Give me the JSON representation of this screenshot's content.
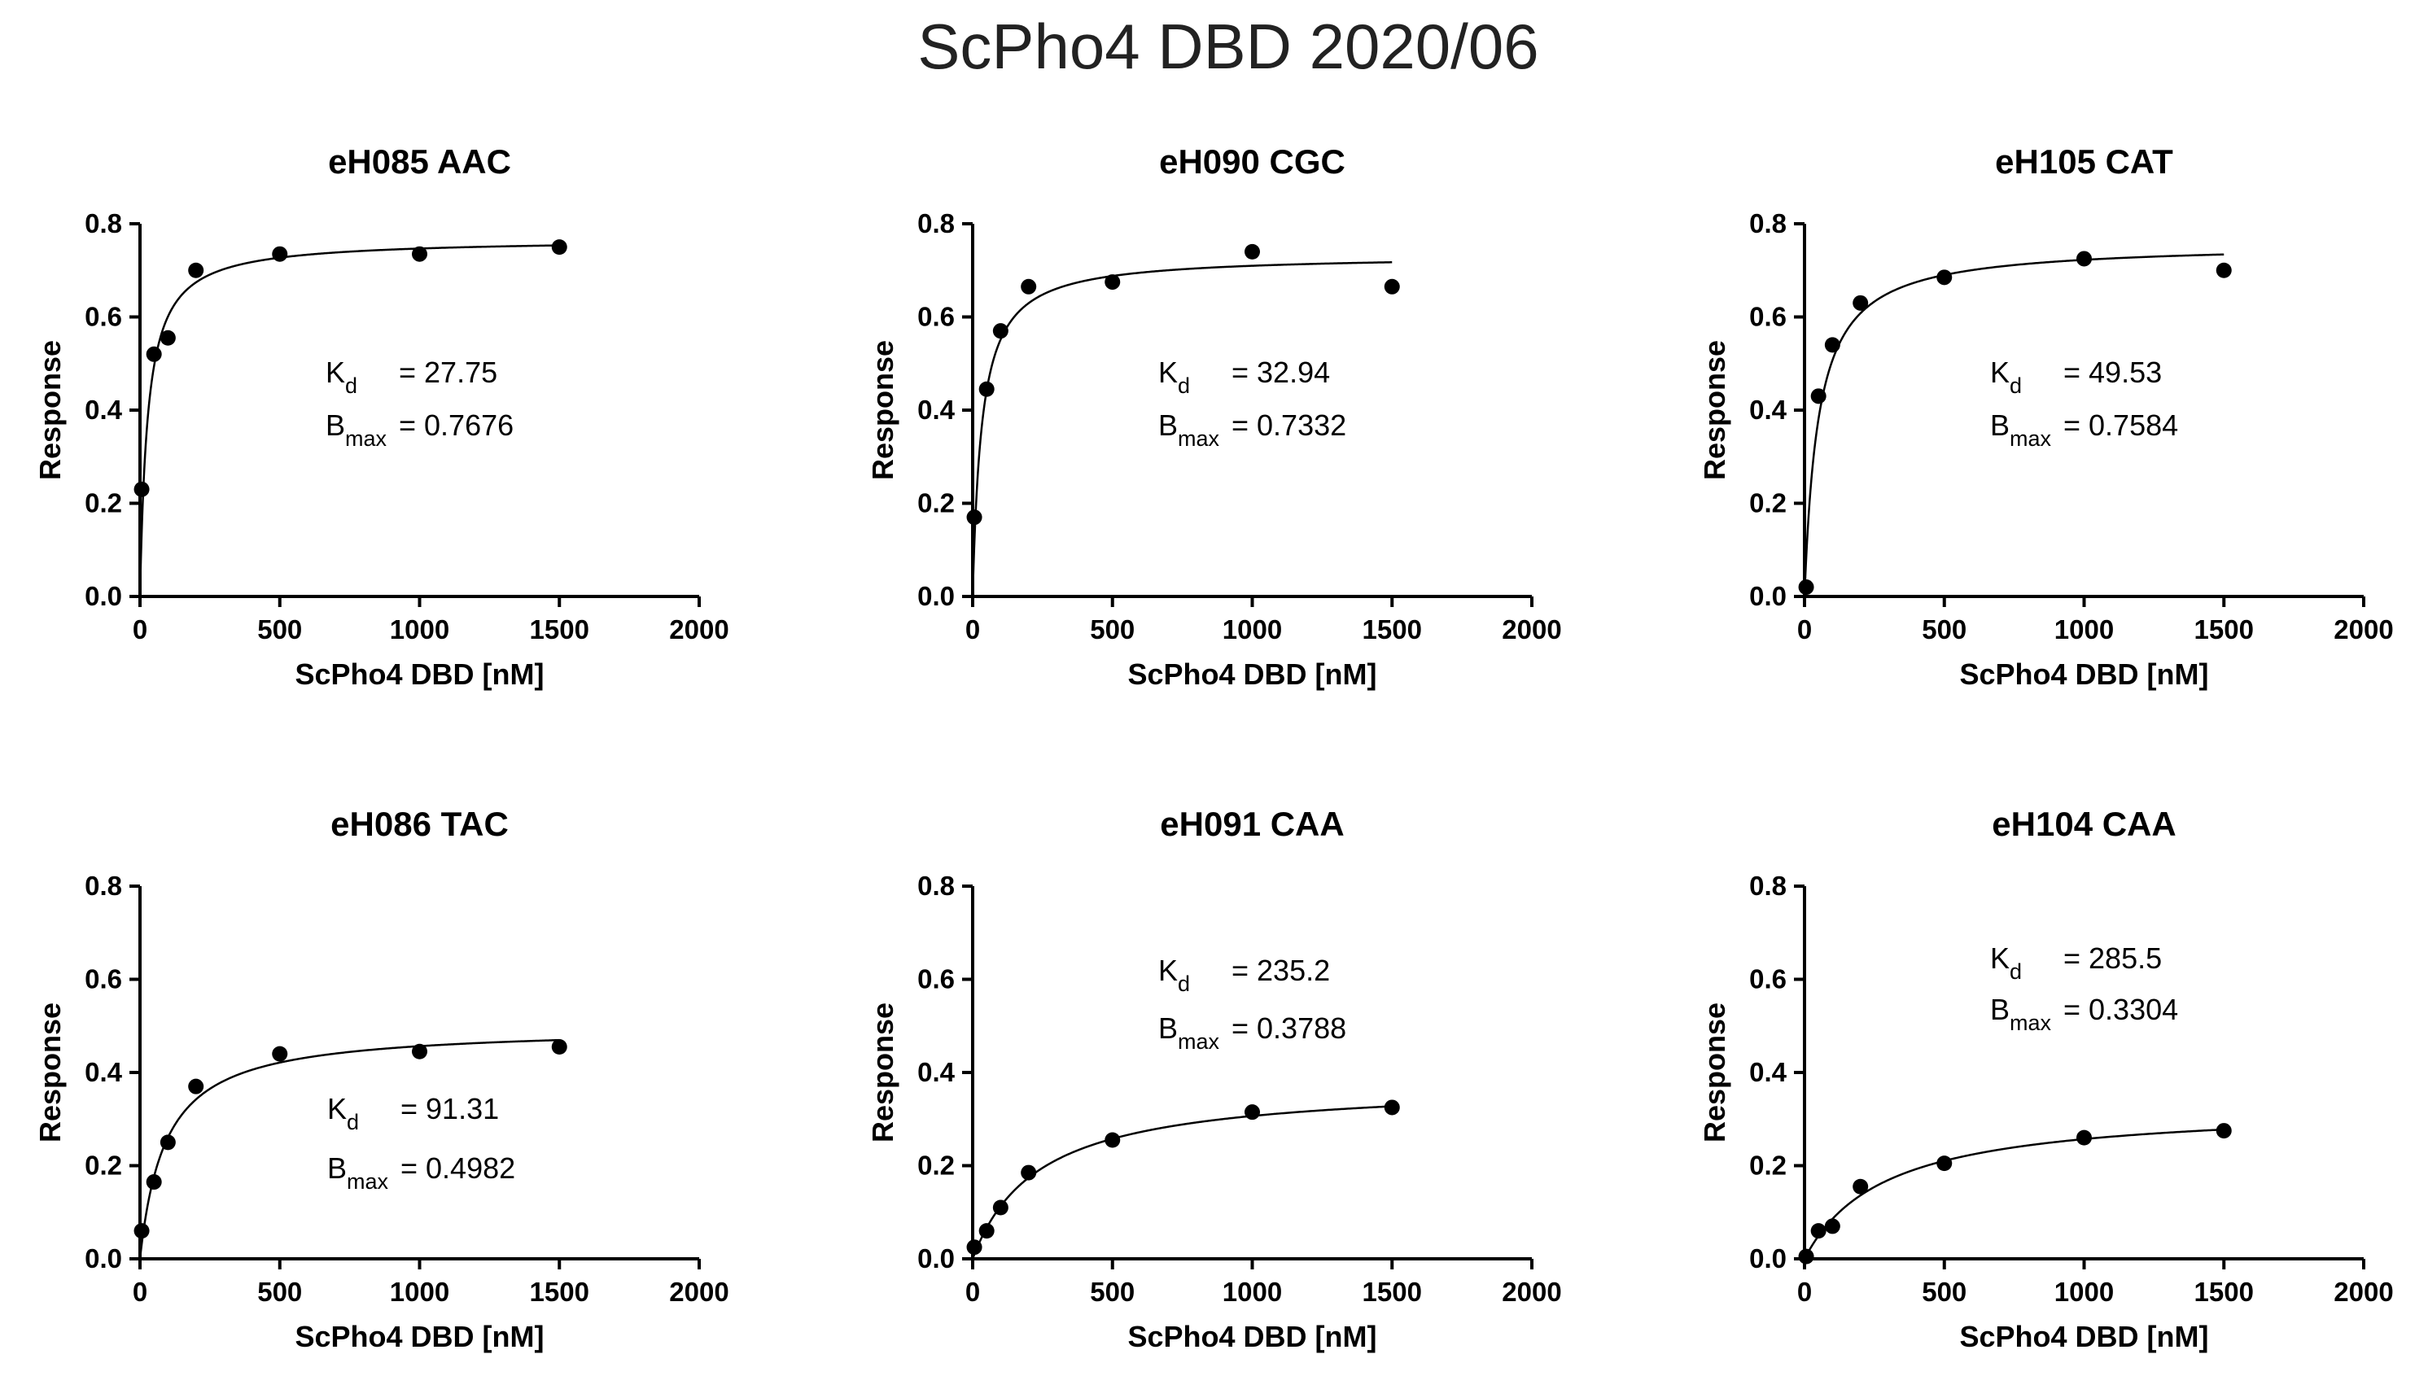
{
  "figure_title": "ScPho4 DBD 2020/06",
  "chart_data": [
    {
      "type": "scatter",
      "title": "eH085 AAC",
      "xlabel": "ScPho4 DBD [nM]",
      "ylabel": "Response",
      "xlim": [
        0,
        2000
      ],
      "ylim": [
        0,
        0.8
      ],
      "xticks": [
        "0",
        "500",
        "1000",
        "1500",
        "2000"
      ],
      "yticks": [
        "0.0",
        "0.2",
        "0.4",
        "0.6",
        "0.8"
      ],
      "x": [
        6,
        50,
        100,
        200,
        500,
        1000,
        1500
      ],
      "y": [
        0.23,
        0.52,
        0.555,
        0.7,
        0.735,
        0.735,
        0.75
      ],
      "fit": {
        "model": "one-site binding",
        "kd": 27.75,
        "bmax": 0.7676,
        "x_end": 1500
      },
      "annotations": {
        "kd_label": "K",
        "kd_sub": "d",
        "kd_value": "= 27.75",
        "bmax_label": "B",
        "bmax_sub": "max",
        "bmax_value": "= 0.7676"
      }
    },
    {
      "type": "scatter",
      "title": "eH090 CGC",
      "xlabel": "ScPho4 DBD [nM]",
      "ylabel": "Response",
      "xlim": [
        0,
        2000
      ],
      "ylim": [
        0,
        0.8
      ],
      "xticks": [
        "0",
        "500",
        "1000",
        "1500",
        "2000"
      ],
      "yticks": [
        "0.0",
        "0.2",
        "0.4",
        "0.6",
        "0.8"
      ],
      "x": [
        6,
        50,
        100,
        200,
        500,
        1000,
        1500
      ],
      "y": [
        0.17,
        0.445,
        0.57,
        0.665,
        0.675,
        0.74,
        0.665
      ],
      "fit": {
        "model": "one-site binding",
        "kd": 32.94,
        "bmax": 0.7332,
        "x_end": 1500
      },
      "annotations": {
        "kd_label": "K",
        "kd_sub": "d",
        "kd_value": "= 32.94",
        "bmax_label": "B",
        "bmax_sub": "max",
        "bmax_value": "= 0.7332"
      }
    },
    {
      "type": "scatter",
      "title": "eH105 CAT",
      "xlabel": "ScPho4 DBD [nM]",
      "ylabel": "Response",
      "xlim": [
        0,
        2000
      ],
      "ylim": [
        0,
        0.8
      ],
      "xticks": [
        "0",
        "500",
        "1000",
        "1500",
        "2000"
      ],
      "yticks": [
        "0.0",
        "0.2",
        "0.4",
        "0.6",
        "0.8"
      ],
      "x": [
        6,
        50,
        100,
        200,
        500,
        1000,
        1500
      ],
      "y": [
        0.02,
        0.43,
        0.54,
        0.63,
        0.685,
        0.725,
        0.7
      ],
      "fit": {
        "model": "one-site binding",
        "kd": 49.53,
        "bmax": 0.7584,
        "x_end": 1500
      },
      "annotations": {
        "kd_label": "K",
        "kd_sub": "d",
        "kd_value": "= 49.53",
        "bmax_label": "B",
        "bmax_sub": "max",
        "bmax_value": "= 0.7584"
      }
    },
    {
      "type": "scatter",
      "title": "eH086 TAC",
      "xlabel": "ScPho4 DBD [nM]",
      "ylabel": "Response",
      "xlim": [
        0,
        2000
      ],
      "ylim": [
        0,
        0.8
      ],
      "xticks": [
        "0",
        "500",
        "1000",
        "1500",
        "2000"
      ],
      "yticks": [
        "0.0",
        "0.2",
        "0.4",
        "0.6",
        "0.8"
      ],
      "x": [
        6,
        50,
        100,
        200,
        500,
        1000,
        1500
      ],
      "y": [
        0.06,
        0.165,
        0.25,
        0.37,
        0.44,
        0.445,
        0.455
      ],
      "fit": {
        "model": "one-site binding",
        "kd": 91.31,
        "bmax": 0.4982,
        "x_end": 1500
      },
      "annotations": {
        "kd_label": "K",
        "kd_sub": "d",
        "kd_value": "= 91.31",
        "bmax_label": "B",
        "bmax_sub": "max",
        "bmax_value": "= 0.4982"
      }
    },
    {
      "type": "scatter",
      "title": "eH091 CAA",
      "xlabel": "ScPho4 DBD [nM]",
      "ylabel": "Response",
      "xlim": [
        0,
        2000
      ],
      "ylim": [
        0,
        0.8
      ],
      "xticks": [
        "0",
        "500",
        "1000",
        "1500",
        "2000"
      ],
      "yticks": [
        "0.0",
        "0.2",
        "0.4",
        "0.6",
        "0.8"
      ],
      "x": [
        6,
        50,
        100,
        200,
        500,
        1000,
        1500
      ],
      "y": [
        0.025,
        0.06,
        0.11,
        0.185,
        0.255,
        0.315,
        0.325
      ],
      "fit": {
        "model": "one-site binding",
        "kd": 235.2,
        "bmax": 0.3788,
        "x_end": 1500
      },
      "annotations": {
        "kd_label": "K",
        "kd_sub": "d",
        "kd_value": "= 235.2",
        "bmax_label": "B",
        "bmax_sub": "max",
        "bmax_value": "= 0.3788"
      }
    },
    {
      "type": "scatter",
      "title": "eH104 CAA",
      "xlabel": "ScPho4 DBD [nM]",
      "ylabel": "Response",
      "xlim": [
        0,
        2000
      ],
      "ylim": [
        0,
        0.8
      ],
      "xticks": [
        "0",
        "500",
        "1000",
        "1500",
        "2000"
      ],
      "yticks": [
        "0.0",
        "0.2",
        "0.4",
        "0.6",
        "0.8"
      ],
      "x": [
        6,
        50,
        100,
        200,
        500,
        1000,
        1500
      ],
      "y": [
        0.005,
        0.06,
        0.07,
        0.155,
        0.205,
        0.26,
        0.275
      ],
      "fit": {
        "model": "one-site binding",
        "kd": 285.5,
        "bmax": 0.3304,
        "x_end": 1500
      },
      "annotations": {
        "kd_label": "K",
        "kd_sub": "d",
        "kd_value": "= 285.5",
        "bmax_label": "B",
        "bmax_sub": "max",
        "bmax_value": "= 0.3304"
      }
    }
  ]
}
